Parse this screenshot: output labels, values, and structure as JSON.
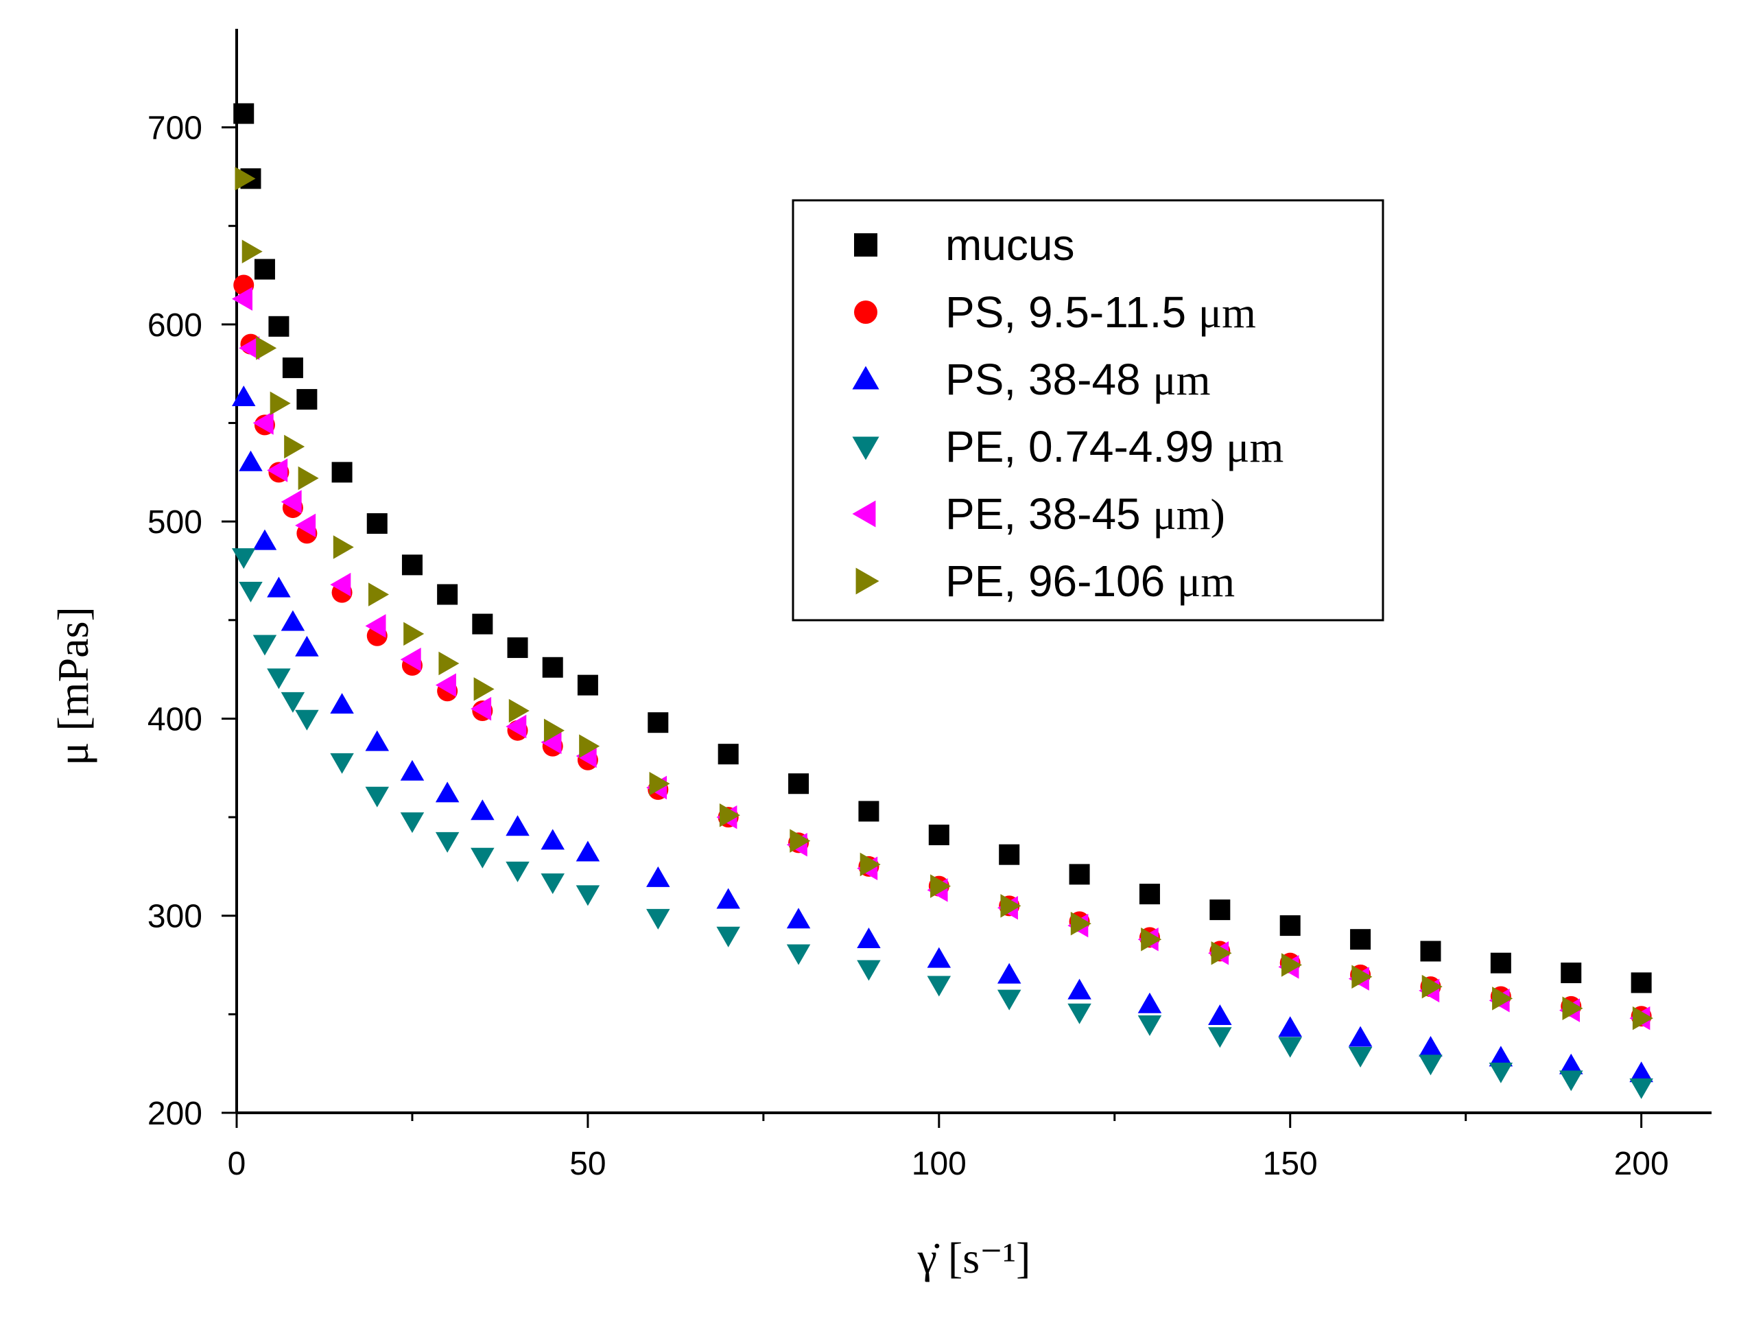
{
  "chart_data": {
    "type": "scatter",
    "title": "",
    "xlabel": "γ̇ [s⁻¹]",
    "ylabel": "μ [mPas]",
    "xlim": [
      0,
      210
    ],
    "ylim": [
      200,
      750
    ],
    "x_ticks": [
      0,
      50,
      100,
      150,
      200
    ],
    "y_ticks": [
      200,
      300,
      400,
      500,
      600,
      700
    ],
    "x_tick_labels": [
      "0",
      "50",
      "100",
      "150",
      "200"
    ],
    "y_tick_labels": [
      "200",
      "300",
      "400",
      "500",
      "600",
      "700"
    ],
    "legend_position": "top-right",
    "x": [
      1,
      2,
      4,
      6,
      8,
      10,
      15,
      20,
      25,
      30,
      35,
      40,
      45,
      50,
      60,
      70,
      80,
      90,
      100,
      110,
      120,
      130,
      140,
      150,
      160,
      170,
      180,
      190,
      200
    ],
    "series": [
      {
        "name": "mucus",
        "label_text": "mucus",
        "unit_text": "",
        "marker": "square",
        "color": "#000000",
        "values": [
          707,
          674,
          628,
          599,
          578,
          562,
          525,
          499,
          478,
          463,
          448,
          436,
          426,
          417,
          398,
          382,
          367,
          353,
          341,
          331,
          321,
          311,
          303,
          295,
          288,
          282,
          276,
          271,
          266
        ]
      },
      {
        "name": "PS, 9.5-11.5 μm",
        "label_text": "PS, 9.5-11.5 ",
        "unit_text": "μm",
        "marker": "circle",
        "color": "#ff0000",
        "values": [
          620,
          590,
          549,
          525,
          507,
          494,
          464,
          442,
          427,
          414,
          404,
          394,
          386,
          379,
          364,
          350,
          337,
          325,
          315,
          305,
          297,
          289,
          282,
          276,
          270,
          264,
          259,
          254,
          249
        ]
      },
      {
        "name": "PS, 38-48 μm",
        "label_text": "PS, 38-48 ",
        "unit_text": "μm",
        "marker": "triangle-up",
        "color": "#0000ff",
        "values": [
          563,
          530,
          490,
          466,
          449,
          436,
          407,
          388,
          373,
          362,
          353,
          345,
          338,
          332,
          319,
          308,
          298,
          288,
          278,
          270,
          262,
          255,
          249,
          243,
          238,
          233,
          228,
          224,
          220
        ]
      },
      {
        "name": "PE, 0.74-4.99 μm",
        "label_text": "PE, 0.74-4.99 ",
        "unit_text": "μm",
        "marker": "triangle-down",
        "color": "#007f7f",
        "values": [
          482,
          465,
          438,
          421,
          409,
          400,
          378,
          361,
          348,
          338,
          330,
          323,
          317,
          311,
          299,
          290,
          281,
          273,
          265,
          258,
          251,
          245,
          239,
          234,
          229,
          225,
          221,
          217,
          213
        ]
      },
      {
        "name": "PE, 38-45 μm)",
        "label_text": "PE, 38-45 ",
        "unit_text": "μm)",
        "marker": "triangle-left",
        "color": "#ff00ff",
        "values": [
          613,
          588,
          550,
          526,
          510,
          498,
          468,
          447,
          430,
          417,
          405,
          396,
          388,
          381,
          365,
          350,
          336,
          324,
          313,
          304,
          295,
          288,
          281,
          274,
          268,
          262,
          257,
          252,
          248
        ]
      },
      {
        "name": "PE, 96-106 μm",
        "label_text": "PE, 96-106 ",
        "unit_text": "μm",
        "marker": "triangle-right",
        "color": "#808000",
        "values": [
          674,
          637,
          588,
          560,
          538,
          522,
          487,
          463,
          443,
          428,
          415,
          404,
          394,
          386,
          367,
          351,
          338,
          326,
          315,
          305,
          296,
          288,
          281,
          275,
          269,
          264,
          258,
          253,
          248
        ]
      }
    ]
  }
}
